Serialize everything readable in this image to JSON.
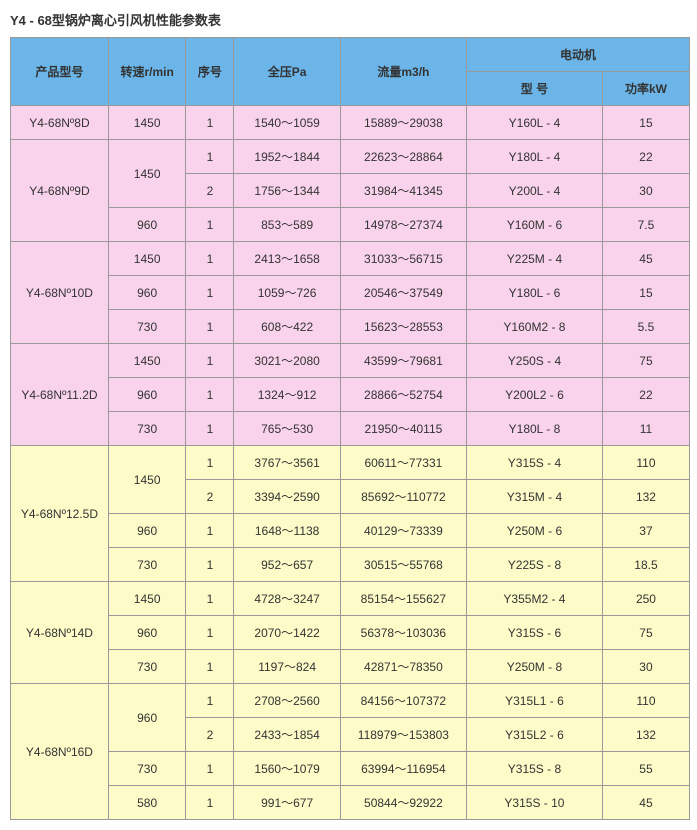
{
  "title": "Y4 - 68型锅炉离心引风机性能参数表",
  "headers": {
    "model": "产品型号",
    "rpm": "转速r/min",
    "seq": "序号",
    "pressure": "全压Pa",
    "flow": "流量m3/h",
    "motor": "电动机",
    "motor_model": "型 号",
    "power": "功率kW"
  },
  "groups": [
    {
      "bg": "bg-pink",
      "model": "Y4-68Nº8D",
      "rows": [
        {
          "rpm": "1450",
          "rpm_span": 1,
          "seq": "1",
          "pressure": "1540～1059",
          "flow": "15889～29038",
          "motor": "Y160L - 4",
          "power": "15"
        }
      ]
    },
    {
      "bg": "bg-pink",
      "model": "Y4-68Nº9D",
      "rows": [
        {
          "rpm": "1450",
          "rpm_span": 2,
          "seq": "1",
          "pressure": "1952～1844",
          "flow": "22623～28864",
          "motor": "Y180L - 4",
          "power": "22"
        },
        {
          "rpm": null,
          "seq": "2",
          "pressure": "1756～1344",
          "flow": "31984～41345",
          "motor": "Y200L - 4",
          "power": "30"
        },
        {
          "rpm": "960",
          "rpm_span": 1,
          "seq": "1",
          "pressure": "853～589",
          "flow": "14978～27374",
          "motor": "Y160M - 6",
          "power": "7.5"
        }
      ]
    },
    {
      "bg": "bg-pink",
      "model": "Y4-68Nº10D",
      "rows": [
        {
          "rpm": "1450",
          "rpm_span": 1,
          "seq": "1",
          "pressure": "2413～1658",
          "flow": "31033～56715",
          "motor": "Y225M - 4",
          "power": "45"
        },
        {
          "rpm": "960",
          "rpm_span": 1,
          "seq": "1",
          "pressure": "1059～726",
          "flow": "20546～37549",
          "motor": "Y180L - 6",
          "power": "15"
        },
        {
          "rpm": "730",
          "rpm_span": 1,
          "seq": "1",
          "pressure": "608～422",
          "flow": "15623～28553",
          "motor": "Y160M2 - 8",
          "power": "5.5"
        }
      ]
    },
    {
      "bg": "bg-pink",
      "model": "Y4-68Nº11.2D",
      "rows": [
        {
          "rpm": "1450",
          "rpm_span": 1,
          "seq": "1",
          "pressure": "3021～2080",
          "flow": "43599～79681",
          "motor": "Y250S - 4",
          "power": "75"
        },
        {
          "rpm": "960",
          "rpm_span": 1,
          "seq": "1",
          "pressure": "1324～912",
          "flow": "28866～52754",
          "motor": "Y200L2 - 6",
          "power": "22"
        },
        {
          "rpm": "730",
          "rpm_span": 1,
          "seq": "1",
          "pressure": "765～530",
          "flow": "21950～40115",
          "motor": "Y180L - 8",
          "power": "11"
        }
      ]
    },
    {
      "bg": "bg-yellow",
      "model": "Y4-68Nº12.5D",
      "rows": [
        {
          "rpm": "1450",
          "rpm_span": 2,
          "seq": "1",
          "pressure": "3767～3561",
          "flow": "60611～77331",
          "motor": "Y315S - 4",
          "power": "110"
        },
        {
          "rpm": null,
          "seq": "2",
          "pressure": "3394～2590",
          "flow": "85692～110772",
          "motor": "Y315M - 4",
          "power": "132"
        },
        {
          "rpm": "960",
          "rpm_span": 1,
          "seq": "1",
          "pressure": "1648～1138",
          "flow": "40129～73339",
          "motor": "Y250M - 6",
          "power": "37"
        },
        {
          "rpm": "730",
          "rpm_span": 1,
          "seq": "1",
          "pressure": "952～657",
          "flow": "30515～55768",
          "motor": "Y225S - 8",
          "power": "18.5"
        }
      ]
    },
    {
      "bg": "bg-yellow",
      "model": "Y4-68Nº14D",
      "rows": [
        {
          "rpm": "1450",
          "rpm_span": 1,
          "seq": "1",
          "pressure": "4728～3247",
          "flow": "85154～155627",
          "motor": "Y355M2 - 4",
          "power": "250"
        },
        {
          "rpm": "960",
          "rpm_span": 1,
          "seq": "1",
          "pressure": "2070～1422",
          "flow": "56378～103036",
          "motor": "Y315S - 6",
          "power": "75"
        },
        {
          "rpm": "730",
          "rpm_span": 1,
          "seq": "1",
          "pressure": "1197～824",
          "flow": "42871～78350",
          "motor": "Y250M - 8",
          "power": "30"
        }
      ]
    },
    {
      "bg": "bg-yellow",
      "model": "Y4-68Nº16D",
      "rows": [
        {
          "rpm": "960",
          "rpm_span": 2,
          "seq": "1",
          "pressure": "2708～2560",
          "flow": "84156～107372",
          "motor": "Y315L1 - 6",
          "power": "110"
        },
        {
          "rpm": null,
          "seq": "2",
          "pressure": "2433～1854",
          "flow": "118979～153803",
          "motor": "Y315L2 - 6",
          "power": "132"
        },
        {
          "rpm": "730",
          "rpm_span": 1,
          "seq": "1",
          "pressure": "1560～1079",
          "flow": "63994～116954",
          "motor": "Y315S - 8",
          "power": "55"
        },
        {
          "rpm": "580",
          "rpm_span": 1,
          "seq": "1",
          "pressure": "991～677",
          "flow": "50844～92922",
          "motor": "Y315S - 10",
          "power": "45"
        }
      ]
    }
  ]
}
